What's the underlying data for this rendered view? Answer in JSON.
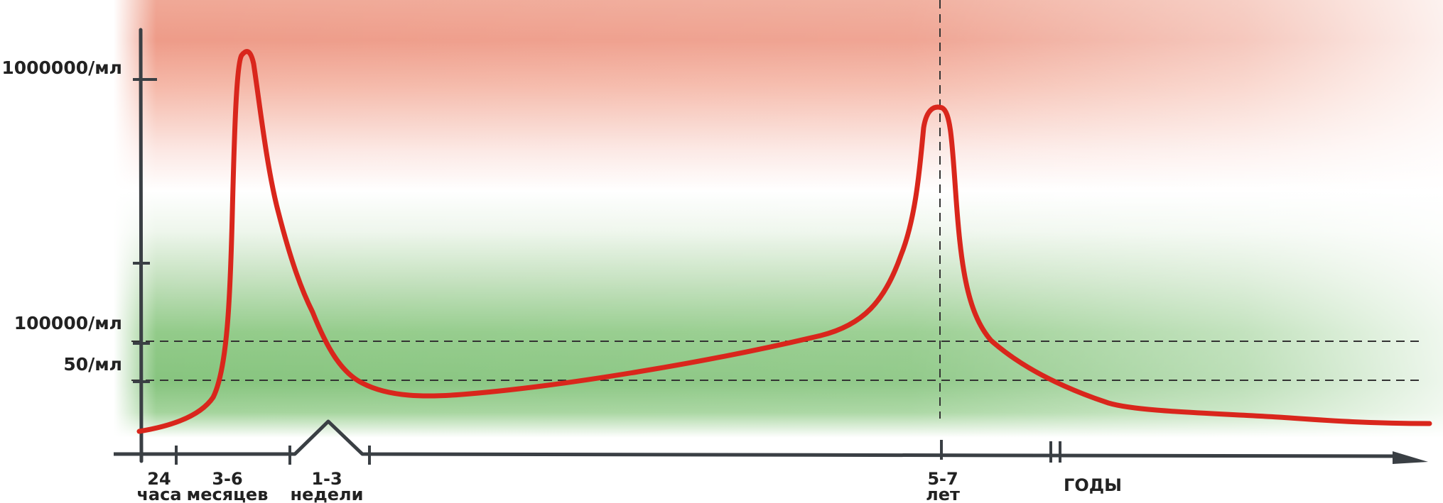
{
  "chart_data": {
    "type": "line",
    "title": "",
    "xlabel": "",
    "ylabel": "",
    "y_tick_labels": [
      "1000000/мл",
      "100000/мл",
      "50/мл"
    ],
    "x_tick_labels": [
      {
        "top": "24",
        "bottom": "часа"
      },
      {
        "top": "3-6",
        "bottom": "месяцев"
      },
      {
        "top": "1-3",
        "bottom": "недели"
      },
      {
        "top": "5-7",
        "bottom": "лет"
      },
      {
        "top": "ГОДЫ",
        "bottom": ""
      }
    ],
    "reference_lines": [
      "100000/мл",
      "50/мл"
    ],
    "vertical_marker_at": "5-7 лет",
    "axis_breaks": [
      "1-3 недели",
      "ГОДЫ"
    ],
    "background_zones": [
      {
        "zone": "top",
        "color": "#ee9b88"
      },
      {
        "zone": "middle",
        "color": "#ffffff"
      },
      {
        "zone": "bottom",
        "color": "#86c47e"
      }
    ],
    "series": [
      {
        "color": "#d9261c",
        "points": [
          [
            "24 часа",
            "near baseline"
          ],
          [
            "3-6 месяцев",
            "peak ~1000000/мл"
          ],
          [
            "1-3 недели",
            "drops below 50/мл"
          ],
          [
            "5-7 лет",
            "second peak"
          ],
          [
            "ГОДЫ",
            "low plateau"
          ]
        ]
      }
    ],
    "grid": false,
    "legend": "none"
  }
}
